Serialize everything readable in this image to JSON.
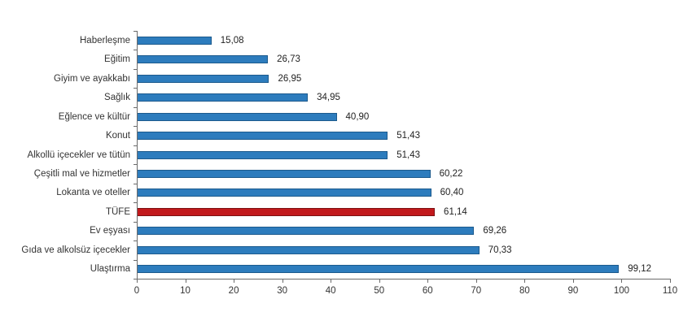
{
  "chart_data": {
    "type": "bar",
    "orientation": "horizontal",
    "title": "",
    "xlabel": "",
    "ylabel": "",
    "categories": [
      "Haberleşme",
      "Eğitim",
      "Giyim ve ayakkabı",
      "Sağlık",
      "Eğlence ve kültür",
      "Konut",
      "Alkollü içecekler ve tütün",
      "Çeşitli mal ve hizmetler",
      "Lokanta ve oteller",
      "TÜFE",
      "Ev eşyası",
      "Gıda ve alkolsüz içecekler",
      "Ulaştırma"
    ],
    "values": [
      15.08,
      26.73,
      26.95,
      34.95,
      40.9,
      51.43,
      51.43,
      60.22,
      60.4,
      61.14,
      69.26,
      70.33,
      99.12
    ],
    "value_labels": [
      "15,08",
      "26,73",
      "26,95",
      "34,95",
      "40,90",
      "51,43",
      "51,43",
      "60,22",
      "60,40",
      "61,14",
      "69,26",
      "70,33",
      "99,12"
    ],
    "highlight_category": "TÜFE",
    "xlim": [
      0,
      110
    ],
    "x_ticks": [
      0,
      10,
      20,
      30,
      40,
      50,
      60,
      70,
      80,
      90,
      100,
      110
    ],
    "x_tick_labels": [
      "0",
      "10",
      "20",
      "30",
      "40",
      "50",
      "60",
      "70",
      "80",
      "90",
      "100",
      "110"
    ],
    "grid": false,
    "legend": null,
    "colors": {
      "bar_fill": "#2d7cbd",
      "bar_border": "#1c5a8d",
      "highlight_fill": "#c2191c",
      "highlight_border": "#7d1012",
      "axis": "#6b6b6b",
      "text": "#333333"
    }
  }
}
